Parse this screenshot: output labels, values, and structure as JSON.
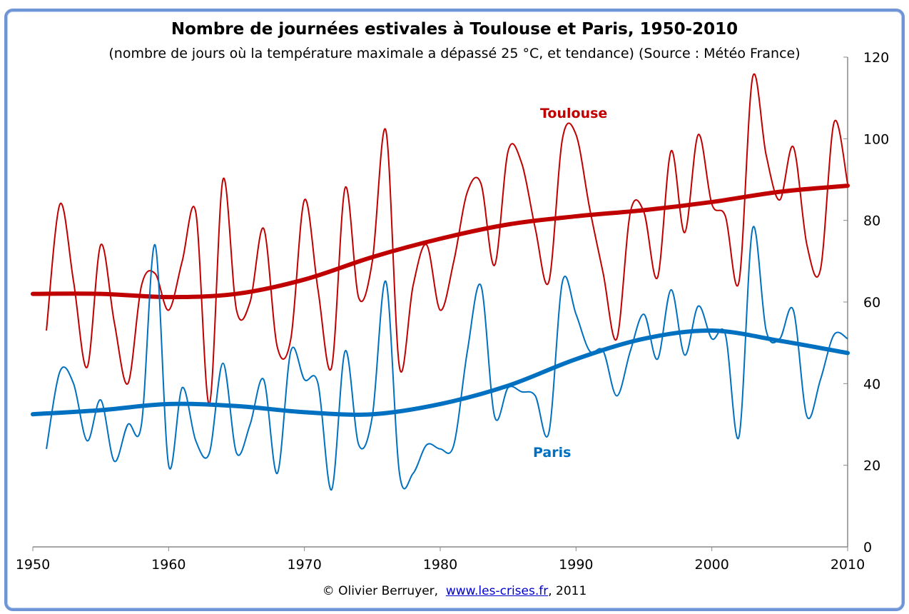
{
  "chart_data": {
    "type": "line",
    "title": "Nombre de journées estivales à Toulouse et Paris, 1950-2010",
    "subtitle": "(nombre de jours où la température maximale a dépassé 25 °C, et tendance) (Source : Météo France)",
    "xlabel": "",
    "ylabel": "",
    "xlim": [
      1950,
      2010
    ],
    "ylim": [
      0,
      120
    ],
    "x_ticks": [
      "1950",
      "1960",
      "1970",
      "1980",
      "1990",
      "2000",
      "2010"
    ],
    "y_ticks": [
      "0",
      "20",
      "40",
      "60",
      "80",
      "100",
      "120"
    ],
    "y_axis_side": "right",
    "grid": false,
    "legend": "inline labels",
    "colors": {
      "toulouse": "#c00000",
      "paris": "#0070c0",
      "frame": "#6f95d6"
    },
    "years": [
      1951,
      1952,
      1953,
      1954,
      1955,
      1956,
      1957,
      1958,
      1959,
      1960,
      1961,
      1962,
      1963,
      1964,
      1965,
      1966,
      1967,
      1968,
      1969,
      1970,
      1971,
      1972,
      1973,
      1974,
      1975,
      1976,
      1977,
      1978,
      1979,
      1980,
      1981,
      1982,
      1983,
      1984,
      1985,
      1986,
      1987,
      1988,
      1989,
      1990,
      1991,
      1992,
      1993,
      1994,
      1995,
      1996,
      1997,
      1998,
      1999,
      2000,
      2001,
      2002,
      2003,
      2004,
      2005,
      2006,
      2007,
      2008,
      2009,
      2010
    ],
    "series": [
      {
        "name": "Toulouse",
        "color": "#c00000",
        "values": [
          53,
          84,
          65,
          44,
          74,
          55,
          40,
          64,
          67,
          58,
          70,
          82,
          35,
          90,
          58,
          60,
          78,
          49,
          51,
          85,
          63,
          44,
          88,
          61,
          70,
          102,
          44,
          64,
          74,
          58,
          70,
          87,
          89,
          69,
          97,
          94,
          78,
          65,
          100,
          101,
          83,
          67,
          51,
          82,
          82,
          66,
          97,
          77,
          101,
          84,
          81,
          65,
          115,
          96,
          85,
          98,
          74,
          68,
          104,
          89
        ],
        "trend": {
          "x": [
            1950,
            1955,
            1960,
            1965,
            1970,
            1975,
            1980,
            1985,
            1990,
            1995,
            2000,
            2005,
            2010
          ],
          "values": [
            62,
            62,
            61.2,
            62,
            65.5,
            71,
            75.5,
            79,
            81,
            82.5,
            84.5,
            87,
            88.5
          ]
        }
      },
      {
        "name": "Paris",
        "color": "#0070c0",
        "values": [
          24,
          43,
          40,
          26,
          36,
          21,
          30,
          30,
          74,
          20,
          39,
          26,
          23,
          45,
          23,
          30,
          41,
          18,
          48,
          41,
          40,
          14,
          48,
          25,
          32,
          65,
          18,
          18,
          25,
          24,
          25,
          48,
          64,
          32,
          39,
          38,
          37,
          28,
          65,
          57,
          48,
          48,
          37,
          48,
          57,
          46,
          63,
          47,
          59,
          51,
          52,
          27,
          78,
          53,
          51,
          58,
          32,
          41,
          52,
          51
        ],
        "trend": {
          "x": [
            1950,
            1955,
            1960,
            1965,
            1970,
            1975,
            1980,
            1985,
            1990,
            1995,
            2000,
            2005,
            2010
          ],
          "values": [
            32.5,
            33.5,
            35,
            34.5,
            33,
            32.5,
            35,
            39.5,
            46,
            51,
            53,
            50.5,
            47.5
          ]
        }
      }
    ]
  },
  "footer": {
    "copyright": "© Olivier Berruyer,",
    "link": "www.les-crises.fr",
    "year": ", 2011"
  }
}
